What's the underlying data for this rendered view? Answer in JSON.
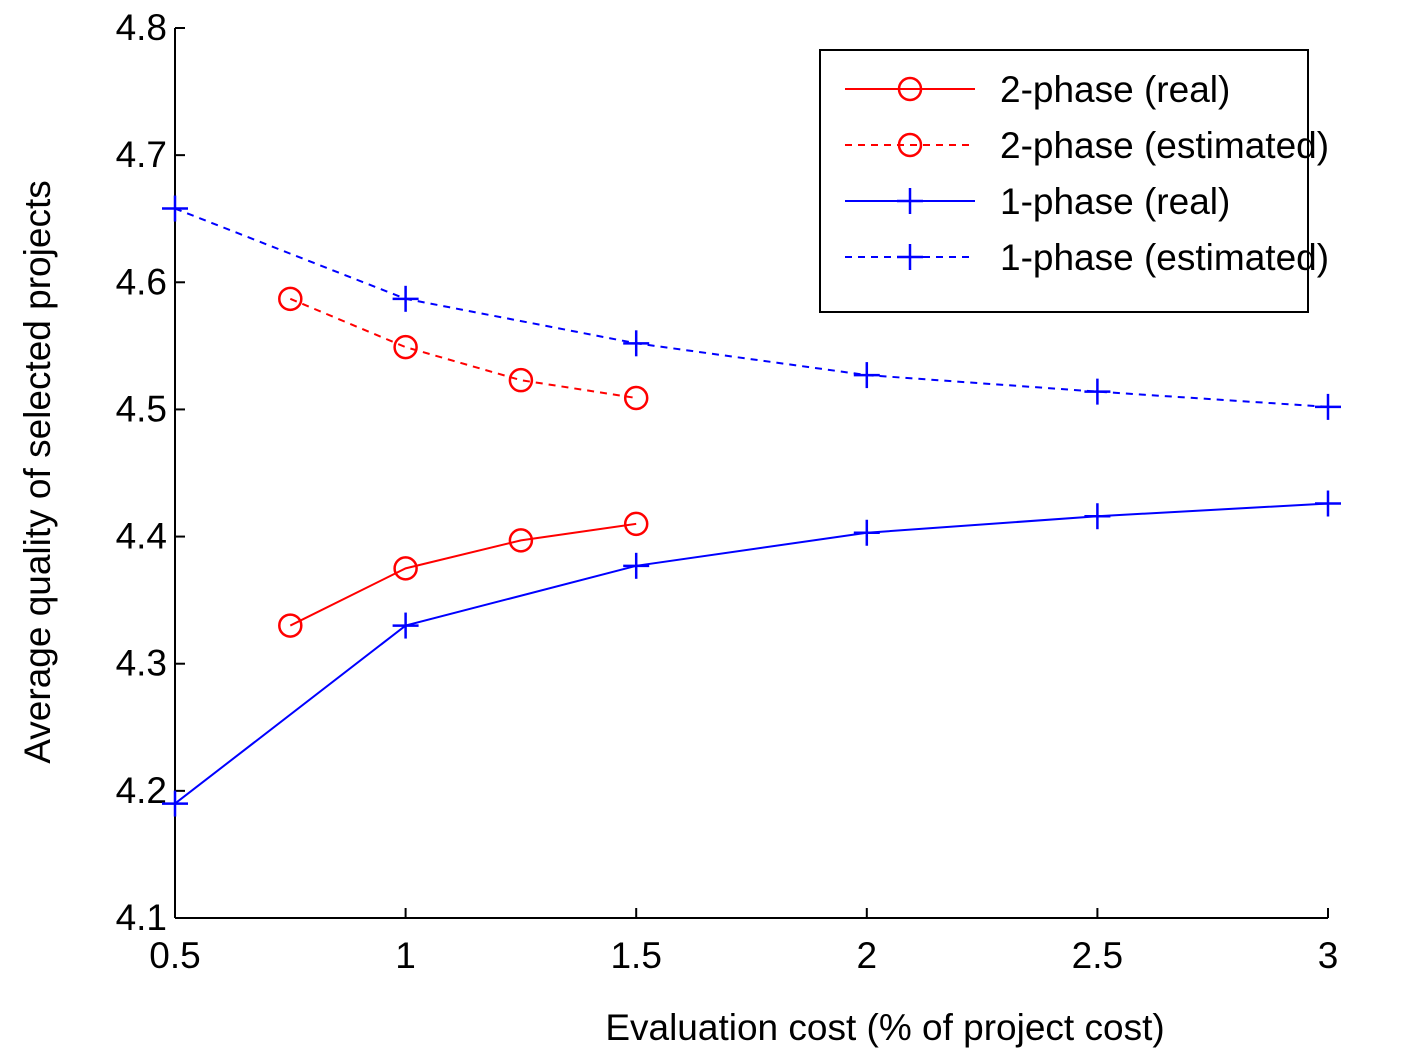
{
  "chart_data": {
    "type": "line",
    "xlabel": "Evaluation cost (% of project cost)",
    "ylabel": "Average quality of selected projects",
    "xlim": [
      0.5,
      3
    ],
    "ylim": [
      4.1,
      4.8
    ],
    "xticks": [
      0.5,
      1,
      1.5,
      2,
      2.5,
      3
    ],
    "xtick_labels": [
      "0.5",
      "1",
      "1.5",
      "2",
      "2.5",
      "3"
    ],
    "yticks": [
      4.1,
      4.2,
      4.3,
      4.4,
      4.5,
      4.6,
      4.7,
      4.8
    ],
    "ytick_labels": [
      "4.1",
      "4.2",
      "4.3",
      "4.4",
      "4.5",
      "4.6",
      "4.7",
      "4.8"
    ],
    "grid": false,
    "legend_position": "top-right",
    "series": [
      {
        "name": "2-phase (real)",
        "color": "#ff0000",
        "dash": "solid",
        "marker": "circle",
        "x": [
          0.75,
          1,
          1.25,
          1.5
        ],
        "y": [
          4.33,
          4.375,
          4.397,
          4.41
        ]
      },
      {
        "name": "2-phase (estimated)",
        "color": "#ff0000",
        "dash": "dashed",
        "marker": "circle",
        "x": [
          0.75,
          1,
          1.25,
          1.5
        ],
        "y": [
          4.587,
          4.549,
          4.523,
          4.509
        ]
      },
      {
        "name": "1-phase (real)",
        "color": "#0000ff",
        "dash": "solid",
        "marker": "plus",
        "x": [
          0.5,
          1,
          1.5,
          2,
          2.5,
          3
        ],
        "y": [
          4.19,
          4.33,
          4.377,
          4.403,
          4.416,
          4.426
        ]
      },
      {
        "name": "1-phase (estimated)",
        "color": "#0000ff",
        "dash": "dashed",
        "marker": "plus",
        "x": [
          0.5,
          1,
          1.5,
          2,
          2.5,
          3
        ],
        "y": [
          4.658,
          4.587,
          4.552,
          4.527,
          4.514,
          4.502
        ]
      }
    ]
  }
}
